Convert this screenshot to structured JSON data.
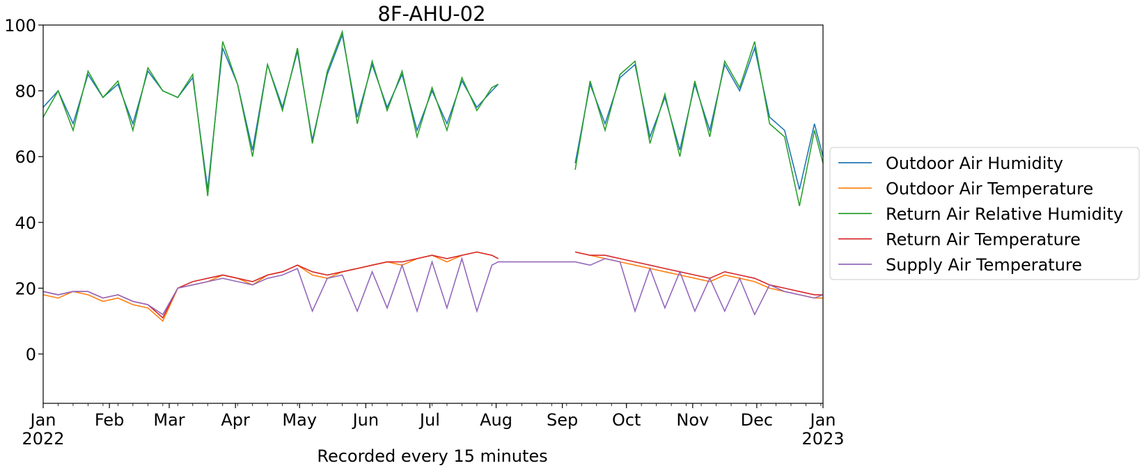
{
  "chart_data": {
    "type": "line",
    "title": "8F-AHU-02",
    "xlabel": "Recorded every 15 minutes",
    "ylabel": "",
    "xlim": [
      "2022-01-01",
      "2023-01-01"
    ],
    "ylim": [
      -15,
      100
    ],
    "yticks": [
      0,
      20,
      40,
      60,
      80,
      100
    ],
    "xticks": [
      {
        "date": "2022-01-01",
        "label": "Jan",
        "sublabel": "2022"
      },
      {
        "date": "2022-02-01",
        "label": "Feb",
        "sublabel": ""
      },
      {
        "date": "2022-03-01",
        "label": "Mar",
        "sublabel": ""
      },
      {
        "date": "2022-04-01",
        "label": "Apr",
        "sublabel": ""
      },
      {
        "date": "2022-05-01",
        "label": "May",
        "sublabel": ""
      },
      {
        "date": "2022-06-01",
        "label": "Jun",
        "sublabel": ""
      },
      {
        "date": "2022-07-01",
        "label": "Jul",
        "sublabel": ""
      },
      {
        "date": "2022-08-01",
        "label": "Aug",
        "sublabel": ""
      },
      {
        "date": "2022-09-01",
        "label": "Sep",
        "sublabel": ""
      },
      {
        "date": "2022-10-01",
        "label": "Oct",
        "sublabel": ""
      },
      {
        "date": "2022-11-01",
        "label": "Nov",
        "sublabel": ""
      },
      {
        "date": "2022-12-01",
        "label": "Dec",
        "sublabel": ""
      },
      {
        "date": "2023-01-01",
        "label": "Jan",
        "sublabel": "2023"
      }
    ],
    "grid": false,
    "legend_position": "right",
    "series": [
      {
        "name": "Outdoor Air Humidity",
        "color": "#1f77b4",
        "x": [
          "2022-01-01",
          "2022-01-08",
          "2022-01-15",
          "2022-01-22",
          "2022-01-29",
          "2022-02-05",
          "2022-02-12",
          "2022-02-19",
          "2022-02-26",
          "2022-03-05",
          "2022-03-12",
          "2022-03-19",
          "2022-03-26",
          "2022-04-02",
          "2022-04-09",
          "2022-04-16",
          "2022-04-23",
          "2022-04-30",
          "2022-05-07",
          "2022-05-14",
          "2022-05-21",
          "2022-05-28",
          "2022-06-04",
          "2022-06-11",
          "2022-06-18",
          "2022-06-25",
          "2022-07-02",
          "2022-07-09",
          "2022-07-16",
          "2022-07-23",
          "2022-07-30",
          "2022-08-02",
          null,
          "2022-09-07",
          "2022-09-14",
          "2022-09-21",
          "2022-09-28",
          "2022-10-05",
          "2022-10-12",
          "2022-10-19",
          "2022-10-26",
          "2022-11-02",
          "2022-11-09",
          "2022-11-16",
          "2022-11-23",
          "2022-11-30",
          "2022-12-07",
          "2022-12-14",
          "2022-12-21",
          "2022-12-28",
          "2023-01-01"
        ],
        "y": [
          75,
          80,
          70,
          85,
          78,
          82,
          70,
          86,
          80,
          78,
          84,
          50,
          93,
          82,
          62,
          88,
          75,
          92,
          65,
          85,
          97,
          72,
          88,
          75,
          85,
          68,
          80,
          70,
          83,
          75,
          80,
          82,
          null,
          58,
          82,
          70,
          84,
          88,
          66,
          78,
          62,
          82,
          68,
          88,
          80,
          93,
          72,
          68,
          50,
          70,
          60
        ]
      },
      {
        "name": "Outdoor Air Temperature",
        "color": "#ff7f0e",
        "x": [
          "2022-01-01",
          "2022-01-08",
          "2022-01-15",
          "2022-01-22",
          "2022-01-29",
          "2022-02-05",
          "2022-02-12",
          "2022-02-19",
          "2022-02-26",
          "2022-03-05",
          "2022-03-12",
          "2022-03-19",
          "2022-03-26",
          "2022-04-02",
          "2022-04-09",
          "2022-04-16",
          "2022-04-23",
          "2022-04-30",
          "2022-05-07",
          "2022-05-14",
          "2022-05-21",
          "2022-05-28",
          "2022-06-04",
          "2022-06-11",
          "2022-06-18",
          "2022-06-25",
          "2022-07-02",
          "2022-07-09",
          "2022-07-16",
          "2022-07-23",
          "2022-07-30",
          "2022-08-02",
          null,
          "2022-09-07",
          "2022-09-14",
          "2022-09-21",
          "2022-09-28",
          "2022-10-05",
          "2022-10-12",
          "2022-10-19",
          "2022-10-26",
          "2022-11-02",
          "2022-11-09",
          "2022-11-16",
          "2022-11-23",
          "2022-11-30",
          "2022-12-07",
          "2022-12-14",
          "2022-12-21",
          "2022-12-28",
          "2023-01-01"
        ],
        "y": [
          18,
          17,
          19,
          18,
          16,
          17,
          15,
          14,
          10,
          20,
          21,
          22,
          24,
          23,
          21,
          24,
          25,
          27,
          24,
          23,
          25,
          26,
          27,
          28,
          27,
          29,
          30,
          28,
          30,
          31,
          30,
          29,
          null,
          31,
          30,
          29,
          28,
          27,
          26,
          25,
          24,
          23,
          22,
          24,
          23,
          22,
          20,
          19,
          18,
          17,
          17
        ]
      },
      {
        "name": "Return Air Relative Humidity",
        "color": "#2ca02c",
        "x": [
          "2022-01-01",
          "2022-01-08",
          "2022-01-15",
          "2022-01-22",
          "2022-01-29",
          "2022-02-05",
          "2022-02-12",
          "2022-02-19",
          "2022-02-26",
          "2022-03-05",
          "2022-03-12",
          "2022-03-19",
          "2022-03-26",
          "2022-04-02",
          "2022-04-09",
          "2022-04-16",
          "2022-04-23",
          "2022-04-30",
          "2022-05-07",
          "2022-05-14",
          "2022-05-21",
          "2022-05-28",
          "2022-06-04",
          "2022-06-11",
          "2022-06-18",
          "2022-06-25",
          "2022-07-02",
          "2022-07-09",
          "2022-07-16",
          "2022-07-23",
          "2022-07-30",
          "2022-08-02",
          null,
          "2022-09-07",
          "2022-09-14",
          "2022-09-21",
          "2022-09-28",
          "2022-10-05",
          "2022-10-12",
          "2022-10-19",
          "2022-10-26",
          "2022-11-02",
          "2022-11-09",
          "2022-11-16",
          "2022-11-23",
          "2022-11-30",
          "2022-12-07",
          "2022-12-14",
          "2022-12-21",
          "2022-12-28",
          "2023-01-01"
        ],
        "y": [
          72,
          80,
          68,
          86,
          78,
          83,
          68,
          87,
          80,
          78,
          85,
          48,
          95,
          82,
          60,
          88,
          74,
          93,
          64,
          86,
          98,
          70,
          89,
          74,
          86,
          66,
          81,
          68,
          84,
          74,
          81,
          82,
          null,
          56,
          83,
          68,
          85,
          89,
          64,
          79,
          60,
          83,
          66,
          89,
          81,
          95,
          70,
          66,
          45,
          68,
          58
        ]
      },
      {
        "name": "Return Air Temperature",
        "color": "#d62728",
        "x": [
          "2022-01-01",
          "2022-01-08",
          "2022-01-15",
          "2022-01-22",
          "2022-01-29",
          "2022-02-05",
          "2022-02-12",
          "2022-02-19",
          "2022-02-26",
          "2022-03-05",
          "2022-03-12",
          "2022-03-19",
          "2022-03-26",
          "2022-04-02",
          "2022-04-09",
          "2022-04-16",
          "2022-04-23",
          "2022-04-30",
          "2022-05-07",
          "2022-05-14",
          "2022-05-21",
          "2022-05-28",
          "2022-06-04",
          "2022-06-11",
          "2022-06-18",
          "2022-06-25",
          "2022-07-02",
          "2022-07-09",
          "2022-07-16",
          "2022-07-23",
          "2022-07-30",
          "2022-08-02",
          null,
          "2022-09-07",
          "2022-09-14",
          "2022-09-21",
          "2022-09-28",
          "2022-10-05",
          "2022-10-12",
          "2022-10-19",
          "2022-10-26",
          "2022-11-02",
          "2022-11-09",
          "2022-11-16",
          "2022-11-23",
          "2022-11-30",
          "2022-12-07",
          "2022-12-14",
          "2022-12-21",
          "2022-12-28",
          "2023-01-01"
        ],
        "y": [
          19,
          18,
          19,
          19,
          17,
          18,
          16,
          15,
          11,
          20,
          22,
          23,
          24,
          23,
          22,
          24,
          25,
          27,
          25,
          24,
          25,
          26,
          27,
          28,
          28,
          29,
          30,
          29,
          30,
          31,
          30,
          29,
          null,
          31,
          30,
          30,
          29,
          28,
          27,
          26,
          25,
          24,
          23,
          25,
          24,
          23,
          21,
          20,
          19,
          18,
          18
        ]
      },
      {
        "name": "Supply Air Temperature",
        "color": "#9467bd",
        "x": [
          "2022-01-01",
          "2022-01-08",
          "2022-01-15",
          "2022-01-22",
          "2022-01-29",
          "2022-02-05",
          "2022-02-12",
          "2022-02-19",
          "2022-02-26",
          "2022-03-05",
          "2022-03-12",
          "2022-03-19",
          "2022-03-26",
          "2022-04-02",
          "2022-04-09",
          "2022-04-16",
          "2022-04-23",
          "2022-04-30",
          "2022-05-07",
          "2022-05-14",
          "2022-05-21",
          "2022-05-28",
          "2022-06-04",
          "2022-06-11",
          "2022-06-18",
          "2022-06-25",
          "2022-07-02",
          "2022-07-09",
          "2022-07-16",
          "2022-07-23",
          "2022-07-30",
          "2022-08-02",
          "2022-08-15",
          "2022-08-30",
          "2022-09-07",
          "2022-09-14",
          "2022-09-21",
          "2022-09-28",
          "2022-10-05",
          "2022-10-12",
          "2022-10-19",
          "2022-10-26",
          "2022-11-02",
          "2022-11-09",
          "2022-11-16",
          "2022-11-23",
          "2022-11-30",
          "2022-12-07",
          "2022-12-14",
          "2022-12-21",
          "2022-12-28",
          "2023-01-01"
        ],
        "y": [
          19,
          18,
          19,
          19,
          17,
          18,
          16,
          15,
          12,
          20,
          21,
          22,
          23,
          22,
          21,
          23,
          24,
          26,
          13,
          23,
          24,
          13,
          25,
          14,
          27,
          13,
          28,
          14,
          29,
          13,
          27,
          28,
          28,
          28,
          28,
          27,
          29,
          28,
          13,
          26,
          14,
          25,
          13,
          23,
          13,
          23,
          12,
          21,
          19,
          18,
          17,
          18
        ]
      }
    ]
  }
}
